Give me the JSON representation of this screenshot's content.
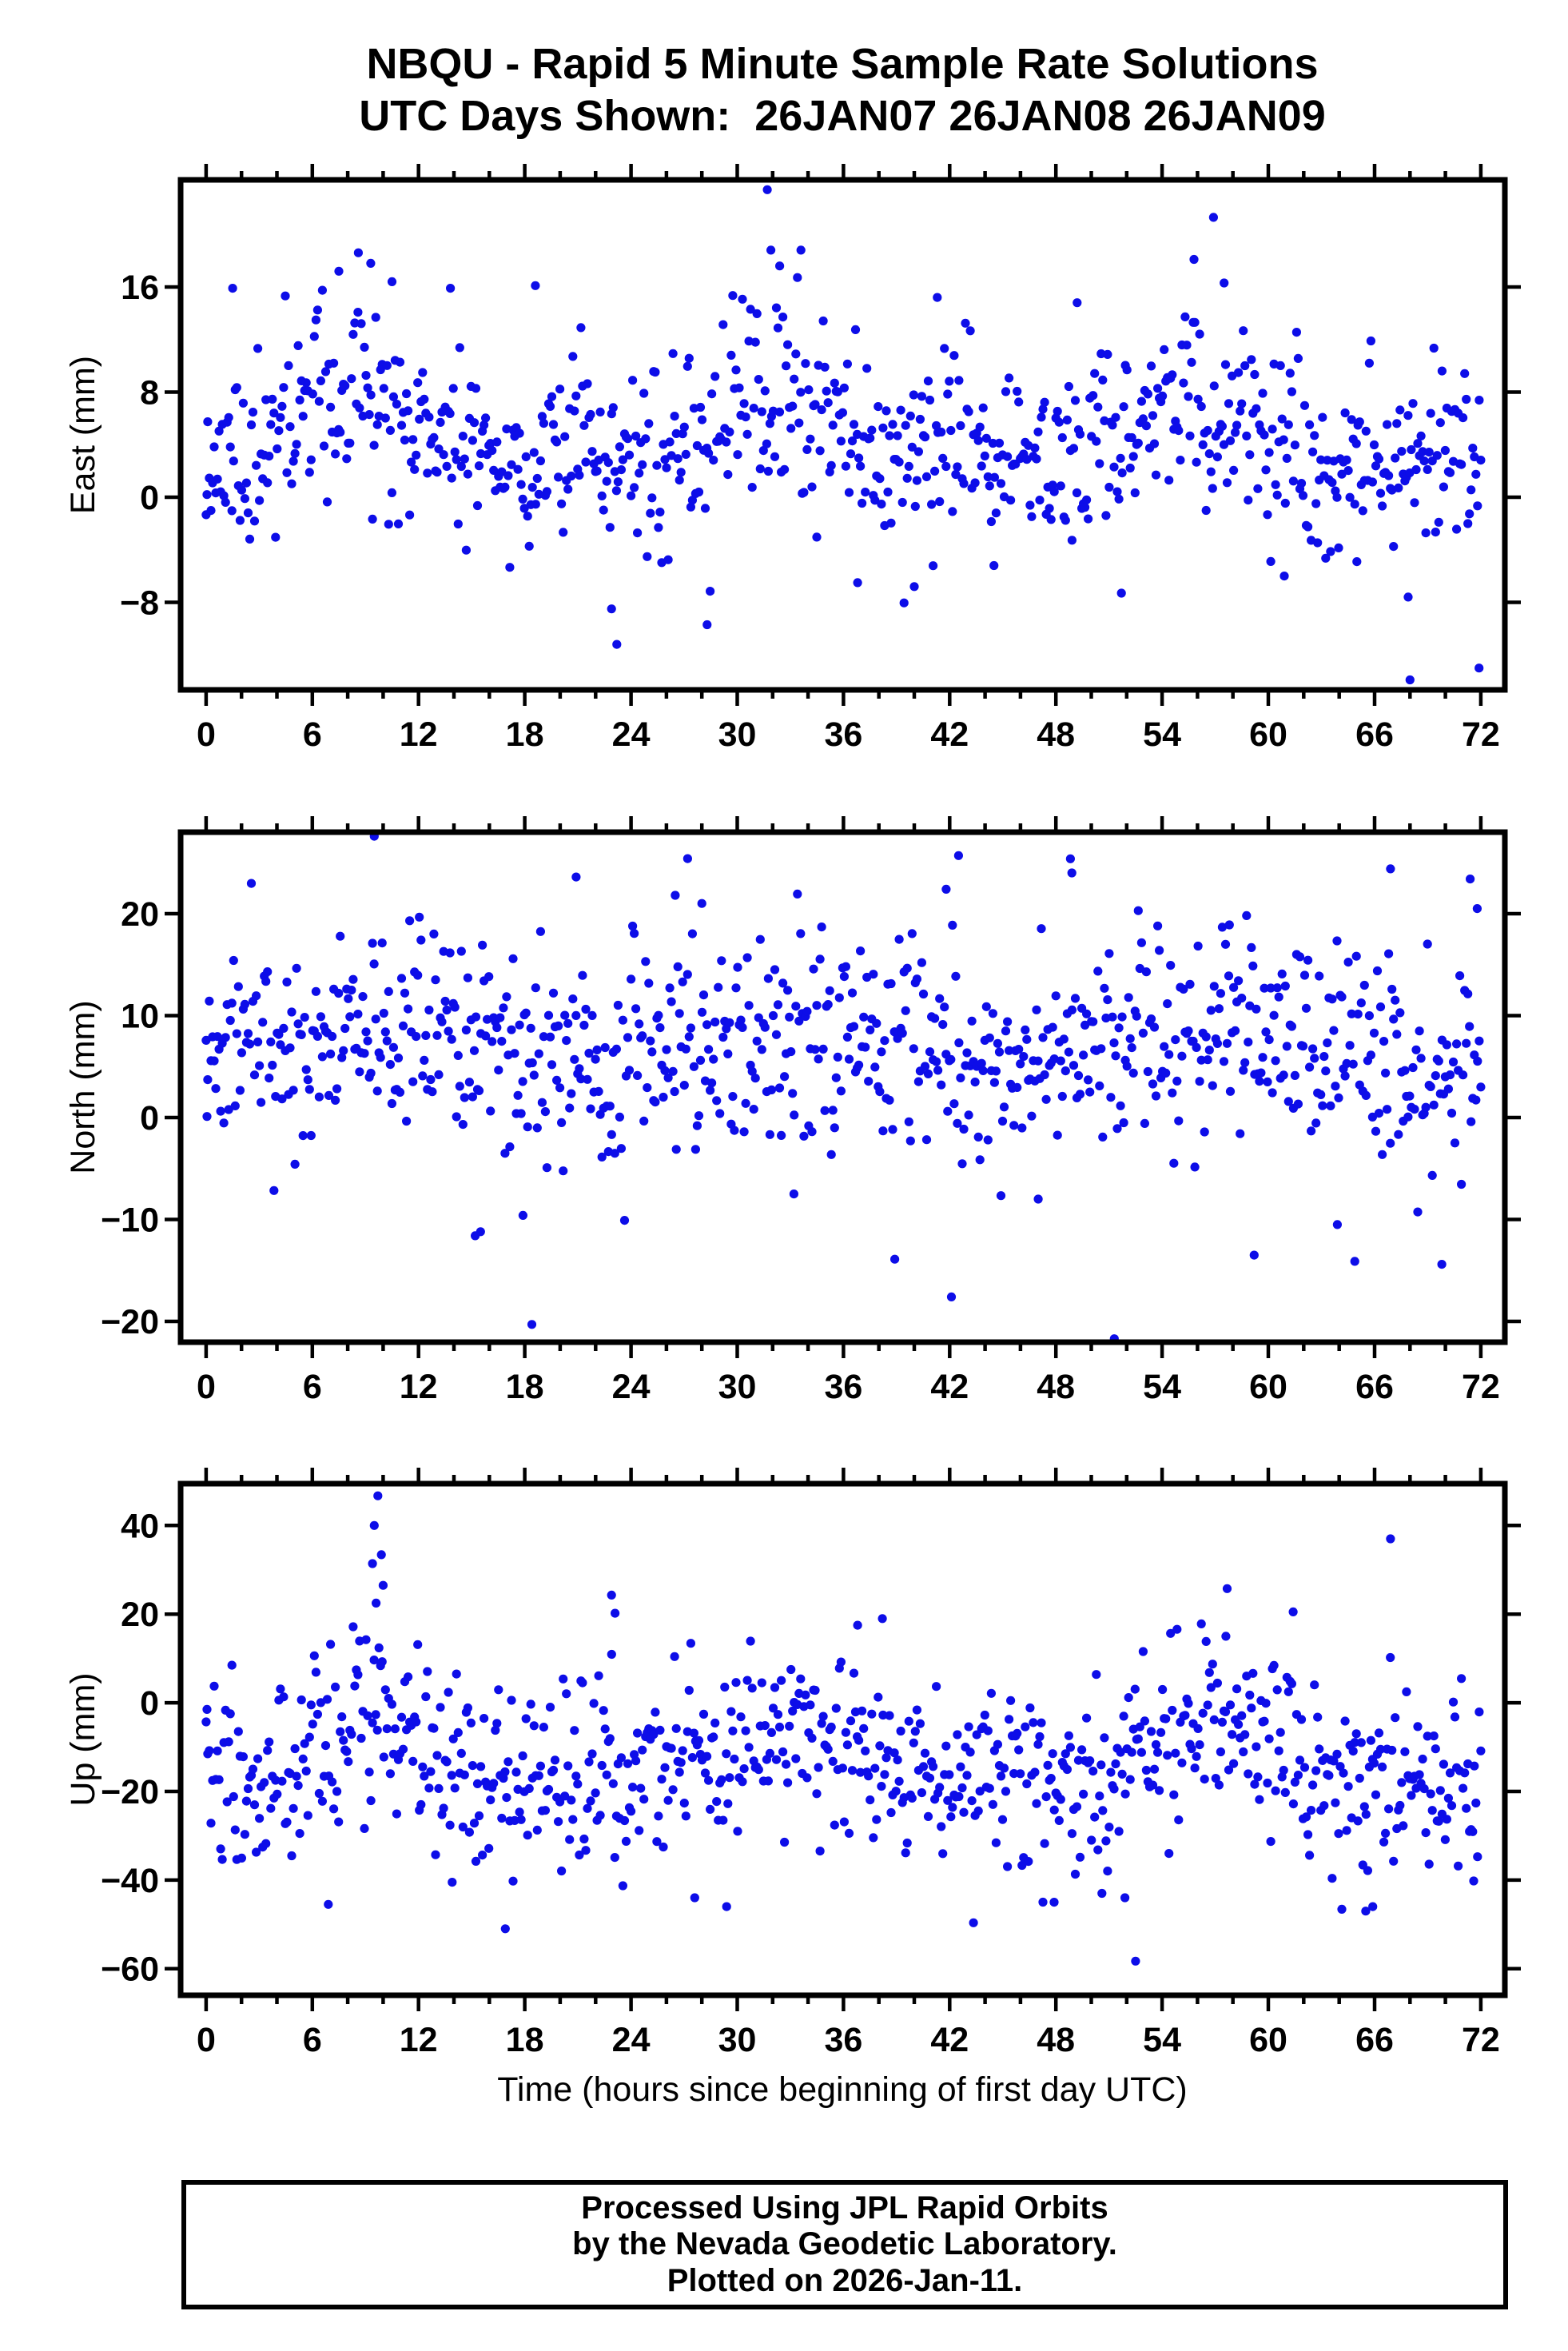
{
  "header": {
    "line1": "NBQU - Rapid 5 Minute Sample Rate Solutions",
    "line2": "UTC Days Shown:  26JAN07 26JAN08 26JAN09"
  },
  "footer": {
    "line1": "Processed Using JPL Rapid Orbits",
    "line2": "by the Nevada Geodetic Laboratory.",
    "line3": "Plotted on 2026-Jan-11."
  },
  "chart_data": {
    "type": "scatter",
    "marker": {
      "shape": "circle",
      "color": "#0d0de8",
      "radius_px": 5.6
    },
    "x": {
      "label": "Time (hours since beginning of first day UTC)",
      "lim": [
        -1.44,
        73.36
      ],
      "data_range": [
        0,
        72
      ],
      "major_ticks": [
        0,
        6,
        12,
        18,
        24,
        30,
        36,
        42,
        48,
        54,
        60,
        66,
        72
      ],
      "minor_step": 2,
      "grid": false
    },
    "plots": [
      {
        "name": "east",
        "ylabel": "East (mm)",
        "ylim": [
          -14.66,
          24.15
        ],
        "yticks": [
          -8,
          0,
          8,
          16
        ],
        "sampling": {
          "seed": 11,
          "n": 790,
          "mean": 4.6,
          "sigma": 3.6,
          "harmonics": [
            [
              2.2,
              24,
              2
            ],
            [
              1.2,
              12,
              5
            ]
          ],
          "tail_prob": 0.015,
          "tail_scale": 6
        },
        "notable_points": [
          [
            0.05,
            0.2
          ],
          [
            31.7,
            23.4
          ],
          [
            31.9,
            18.8
          ],
          [
            33.6,
            18.8
          ],
          [
            32.4,
            17.6
          ],
          [
            56.9,
            21.3
          ],
          [
            55.8,
            18.1
          ],
          [
            57.5,
            16.3
          ],
          [
            8.6,
            18.6
          ],
          [
            9.3,
            17.8
          ],
          [
            7.5,
            17.2
          ],
          [
            10.5,
            16.4
          ],
          [
            13.8,
            15.9
          ],
          [
            18.6,
            16.1
          ],
          [
            1.5,
            15.9
          ],
          [
            41.3,
            15.2
          ],
          [
            49.2,
            14.8
          ],
          [
            23.2,
            -11.2
          ],
          [
            22.9,
            -8.5
          ],
          [
            28.3,
            -9.7
          ],
          [
            68.0,
            -13.9
          ],
          [
            71.9,
            -13.0
          ],
          [
            67.9,
            -7.6
          ],
          [
            36.8,
            -6.5
          ],
          [
            40.0,
            -6.8
          ],
          [
            44.5,
            -5.2
          ],
          [
            51.7,
            -7.3
          ],
          [
            60.9,
            -6.0
          ],
          [
            65.0,
            -4.9
          ]
        ]
      },
      {
        "name": "north",
        "ylabel": "North (mm)",
        "ylim": [
          -22.04,
          28.0
        ],
        "yticks": [
          -20,
          -10,
          0,
          10,
          20
        ],
        "sampling": {
          "seed": 23,
          "n": 790,
          "mean": 6.6,
          "sigma": 5.0,
          "harmonics": [
            [
              1.8,
              24,
              3.5
            ],
            [
              0.8,
              12,
              11
            ]
          ],
          "tail_prob": 0.02,
          "tail_scale": 7
        },
        "notable_points": [
          [
            0.05,
            0.1
          ],
          [
            9.5,
            27.6
          ],
          [
            27.2,
            25.4
          ],
          [
            20.9,
            23.6
          ],
          [
            42.5,
            25.7
          ],
          [
            48.9,
            24.0
          ],
          [
            66.9,
            24.4
          ],
          [
            71.4,
            23.4
          ],
          [
            71.8,
            20.5
          ],
          [
            26.5,
            21.8
          ],
          [
            28.0,
            21.0
          ],
          [
            41.8,
            22.4
          ],
          [
            57.8,
            18.9
          ],
          [
            18.4,
            -20.3
          ],
          [
            51.3,
            -21.7
          ],
          [
            69.8,
            -14.4
          ],
          [
            59.2,
            -13.5
          ],
          [
            38.9,
            -13.9
          ],
          [
            42.1,
            -17.6
          ],
          [
            15.2,
            -11.6
          ],
          [
            15.5,
            -11.2
          ],
          [
            17.9,
            -9.6
          ],
          [
            33.2,
            -7.5
          ],
          [
            47.0,
            -8.0
          ],
          [
            63.9,
            -10.5
          ]
        ]
      },
      {
        "name": "up",
        "ylabel": "Up (mm)",
        "ylim": [
          -66.0,
          49.44
        ],
        "yticks": [
          -60,
          -40,
          -20,
          0,
          20,
          40
        ],
        "sampling": {
          "seed": 37,
          "n": 790,
          "mean": -13.5,
          "sigma": 10.5,
          "harmonics": [
            [
              5.5,
              24,
              3.5
            ],
            [
              3.5,
              12,
              6.5
            ]
          ],
          "tail_prob": 0.02,
          "tail_scale": 12
        },
        "notable_points": [
          [
            0.05,
            -1.5
          ],
          [
            9.7,
            46.7
          ],
          [
            9.5,
            40.0
          ],
          [
            9.9,
            33.4
          ],
          [
            9.4,
            31.4
          ],
          [
            10.0,
            26.5
          ],
          [
            9.6,
            22.5
          ],
          [
            22.9,
            24.3
          ],
          [
            23.1,
            20.2
          ],
          [
            36.8,
            17.5
          ],
          [
            38.2,
            19.0
          ],
          [
            66.9,
            37.0
          ],
          [
            61.4,
            20.5
          ],
          [
            57.6,
            15.0
          ],
          [
            16.9,
            -51.0
          ],
          [
            29.4,
            -46.0
          ],
          [
            52.5,
            -58.3
          ],
          [
            51.9,
            -44.0
          ],
          [
            65.5,
            -47.0
          ],
          [
            65.9,
            -46.0
          ],
          [
            71.6,
            -40.2
          ],
          [
            6.9,
            -45.5
          ],
          [
            13.9,
            -40.5
          ],
          [
            27.6,
            -44.0
          ],
          [
            47.9,
            -45.0
          ],
          [
            50.6,
            -43.0
          ]
        ]
      }
    ]
  }
}
